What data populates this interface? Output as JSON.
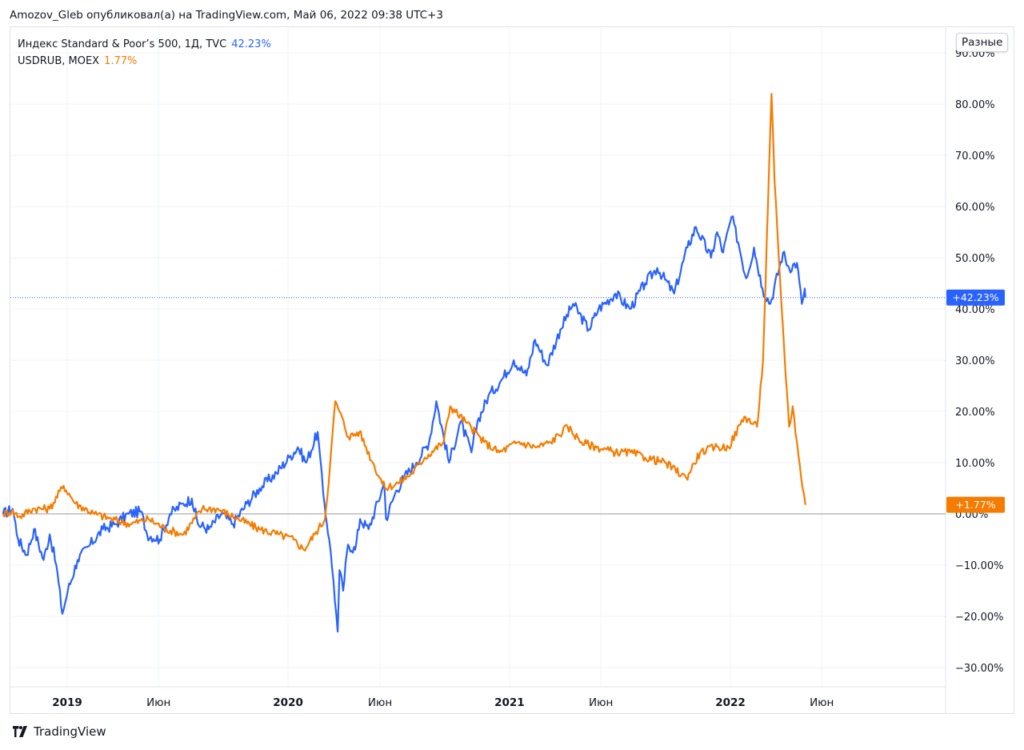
{
  "header": {
    "text": "Amozov_Gleb опубликовал(а) на TradingView.com, Май 06, 2022 09:38 UTC+3"
  },
  "legend": {
    "spx": {
      "label": "Индекс Standard & Poor’s 500, 1Д, TVC",
      "value": "42.23%",
      "color": "#2962ff"
    },
    "usdrub": {
      "label": "USDRUB, MOEX",
      "value": "1.77%",
      "color": "#f57c00"
    }
  },
  "scale_button": "Разные",
  "footer": {
    "brand": "TradingView",
    "icon": "tradingview-logo-icon"
  },
  "chart_data": {
    "type": "line",
    "x_ticks": [
      "2019",
      "Июн",
      "2020",
      "Июн",
      "2021",
      "Июн",
      "2022",
      "Июн"
    ],
    "y_ticks": [
      "90.00%",
      "80.00%",
      "70.00%",
      "60.00%",
      "50.00%",
      "40.00%",
      "30.00%",
      "20.00%",
      "10.00%",
      "0.00%",
      "−10.00%",
      "−20.00%",
      "−30.00%"
    ],
    "ylim": [
      -35,
      92
    ],
    "xlim": [
      "2018-09-15",
      "2022-12-20"
    ],
    "grid": true,
    "zero_line": true,
    "series": [
      {
        "name": "Индекс Standard & Poor’s 500, 1Д, TVC",
        "color": "#2962ff",
        "last_label": "+42.23%",
        "points": [
          [
            "2018-09-17",
            0
          ],
          [
            "2018-10-03",
            1
          ],
          [
            "2018-10-12",
            -5
          ],
          [
            "2018-10-26",
            -8
          ],
          [
            "2018-11-07",
            -3
          ],
          [
            "2018-11-23",
            -9
          ],
          [
            "2018-12-03",
            -4
          ],
          [
            "2018-12-14",
            -10
          ],
          [
            "2018-12-24",
            -19.5
          ],
          [
            "2019-01-02",
            -15
          ],
          [
            "2019-01-18",
            -9
          ],
          [
            "2019-02-08",
            -6
          ],
          [
            "2019-03-01",
            -3
          ],
          [
            "2019-03-22",
            -2
          ],
          [
            "2019-04-12",
            0
          ],
          [
            "2019-05-03",
            0.5
          ],
          [
            "2019-05-13",
            -4
          ],
          [
            "2019-06-03",
            -5
          ],
          [
            "2019-06-20",
            0
          ],
          [
            "2019-07-12",
            2
          ],
          [
            "2019-07-26",
            3
          ],
          [
            "2019-08-05",
            -2
          ],
          [
            "2019-08-23",
            -3
          ],
          [
            "2019-09-13",
            0
          ],
          [
            "2019-10-02",
            -2
          ],
          [
            "2019-10-25",
            2
          ],
          [
            "2019-11-15",
            5
          ],
          [
            "2019-12-13",
            8
          ],
          [
            "2020-01-03",
            11
          ],
          [
            "2020-01-17",
            13
          ],
          [
            "2020-01-31",
            10
          ],
          [
            "2020-02-19",
            16
          ],
          [
            "2020-02-28",
            4
          ],
          [
            "2020-03-09",
            -5
          ],
          [
            "2020-03-16",
            -13
          ],
          [
            "2020-03-23",
            -23
          ],
          [
            "2020-03-26",
            -11
          ],
          [
            "2020-04-01",
            -15
          ],
          [
            "2020-04-09",
            -6
          ],
          [
            "2020-04-21",
            -7
          ],
          [
            "2020-04-29",
            -1
          ],
          [
            "2020-05-13",
            -3
          ],
          [
            "2020-06-08",
            6
          ],
          [
            "2020-06-11",
            -1
          ],
          [
            "2020-06-26",
            4
          ],
          [
            "2020-07-10",
            7
          ],
          [
            "2020-07-31",
            10
          ],
          [
            "2020-08-21",
            14
          ],
          [
            "2020-09-02",
            22
          ],
          [
            "2020-09-23",
            10
          ],
          [
            "2020-10-12",
            18
          ],
          [
            "2020-10-30",
            12
          ],
          [
            "2020-11-09",
            18
          ],
          [
            "2020-11-27",
            23
          ],
          [
            "2020-12-18",
            26
          ],
          [
            "2021-01-08",
            30
          ],
          [
            "2021-01-29",
            27
          ],
          [
            "2021-02-12",
            34
          ],
          [
            "2021-03-04",
            29
          ],
          [
            "2021-03-26",
            36
          ],
          [
            "2021-04-16",
            41
          ],
          [
            "2021-05-12",
            36
          ],
          [
            "2021-05-28",
            40
          ],
          [
            "2021-06-25",
            43
          ],
          [
            "2021-07-19",
            40
          ],
          [
            "2021-08-13",
            45
          ],
          [
            "2021-09-02",
            48
          ],
          [
            "2021-09-30",
            43
          ],
          [
            "2021-10-22",
            52
          ],
          [
            "2021-11-05",
            56
          ],
          [
            "2021-11-30",
            50
          ],
          [
            "2021-12-10",
            55
          ],
          [
            "2021-12-20",
            51
          ],
          [
            "2022-01-03",
            58
          ],
          [
            "2022-01-14",
            53
          ],
          [
            "2022-01-27",
            46
          ],
          [
            "2022-02-09",
            52
          ],
          [
            "2022-02-23",
            44
          ],
          [
            "2022-03-08",
            41
          ],
          [
            "2022-03-29",
            51
          ],
          [
            "2022-04-08",
            48
          ],
          [
            "2022-04-21",
            49
          ],
          [
            "2022-04-29",
            41
          ],
          [
            "2022-05-04",
            44
          ],
          [
            "2022-05-05",
            42.23
          ]
        ]
      },
      {
        "name": "USDRUB, MOEX",
        "color": "#f57c00",
        "last_label": "+1.77%",
        "points": [
          [
            "2018-09-17",
            0
          ],
          [
            "2018-10-01",
            0.5
          ],
          [
            "2018-10-15",
            -0.5
          ],
          [
            "2018-11-05",
            1
          ],
          [
            "2018-12-03",
            1
          ],
          [
            "2018-12-26",
            5.5
          ],
          [
            "2019-01-15",
            2
          ],
          [
            "2019-02-15",
            0
          ],
          [
            "2019-03-15",
            -1
          ],
          [
            "2019-04-15",
            -2
          ],
          [
            "2019-05-15",
            -1
          ],
          [
            "2019-06-14",
            -3
          ],
          [
            "2019-07-12",
            -4
          ],
          [
            "2019-08-12",
            1
          ],
          [
            "2019-09-05",
            1
          ],
          [
            "2019-10-11",
            -1
          ],
          [
            "2019-11-15",
            -3
          ],
          [
            "2019-12-16",
            -4
          ],
          [
            "2020-01-10",
            -5
          ],
          [
            "2020-01-27",
            -7
          ],
          [
            "2020-02-14",
            -4
          ],
          [
            "2020-03-02",
            -1
          ],
          [
            "2020-03-10",
            9
          ],
          [
            "2020-03-19",
            22
          ],
          [
            "2020-03-26",
            20
          ],
          [
            "2020-04-10",
            15
          ],
          [
            "2020-04-28",
            16
          ],
          [
            "2020-05-20",
            10
          ],
          [
            "2020-06-09",
            5
          ],
          [
            "2020-07-01",
            6
          ],
          [
            "2020-07-24",
            8
          ],
          [
            "2020-08-14",
            11
          ],
          [
            "2020-09-14",
            14
          ],
          [
            "2020-09-25",
            21
          ],
          [
            "2020-10-20",
            18
          ],
          [
            "2020-11-20",
            14
          ],
          [
            "2020-12-15",
            12
          ],
          [
            "2021-01-15",
            14
          ],
          [
            "2021-02-15",
            13
          ],
          [
            "2021-03-10",
            14
          ],
          [
            "2021-04-07",
            17
          ],
          [
            "2021-04-30",
            14
          ],
          [
            "2021-05-25",
            13
          ],
          [
            "2021-06-25",
            12
          ],
          [
            "2021-07-20",
            12
          ],
          [
            "2021-08-13",
            11
          ],
          [
            "2021-09-15",
            10
          ],
          [
            "2021-10-20",
            7
          ],
          [
            "2021-11-12",
            12
          ],
          [
            "2021-12-06",
            13
          ],
          [
            "2021-12-29",
            13
          ],
          [
            "2022-01-24",
            19
          ],
          [
            "2022-02-14",
            17
          ],
          [
            "2022-02-24",
            30
          ],
          [
            "2022-03-04",
            60
          ],
          [
            "2022-03-10",
            82
          ],
          [
            "2022-03-15",
            65
          ],
          [
            "2022-03-22",
            50
          ],
          [
            "2022-03-31",
            32
          ],
          [
            "2022-04-08",
            17
          ],
          [
            "2022-04-14",
            21
          ],
          [
            "2022-04-21",
            14
          ],
          [
            "2022-04-28",
            7
          ],
          [
            "2022-05-05",
            1.77
          ]
        ]
      }
    ]
  }
}
